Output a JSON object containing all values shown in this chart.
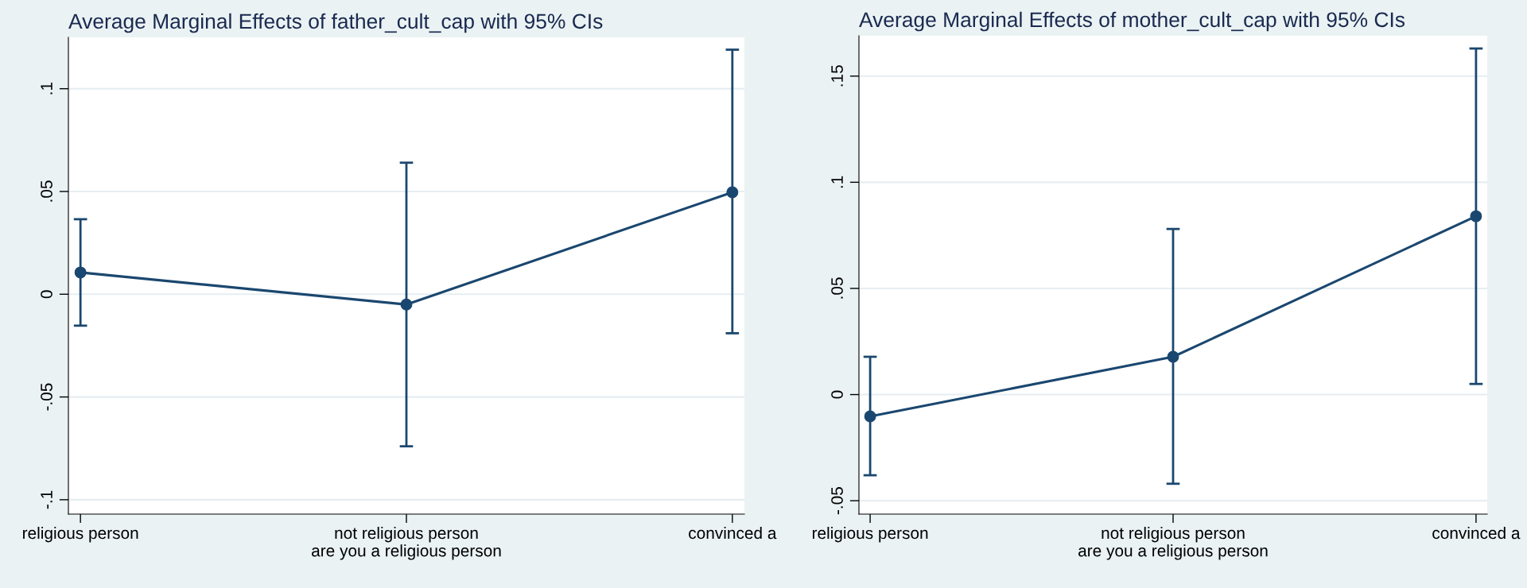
{
  "chart_data": [
    {
      "type": "line",
      "title": "Average Marginal Effects of father_cult_cap with 95% CIs",
      "xlabel": "are you a religious person",
      "categories": [
        "religious person",
        "not religious person",
        "convinced a"
      ],
      "series": [
        {
          "color": "#1a476f",
          "values": [
            0.0106,
            -0.005,
            0.0496
          ],
          "errors": [
            [
              -0.0153,
              0.0365
            ],
            [
              -0.074,
              0.064
            ],
            [
              -0.019,
              0.119
            ]
          ]
        }
      ],
      "ylim": [
        -0.107,
        0.125
      ],
      "yticks": [
        {
          "value": -0.1,
          "label": "-.1"
        },
        {
          "value": -0.05,
          "label": "-.05"
        },
        0,
        {
          "value": 0.05,
          "label": ".05"
        },
        {
          "value": 0.1,
          "label": ".1"
        }
      ],
      "grid": "y",
      "marker": "circle",
      "line_style": "solid"
    },
    {
      "type": "line",
      "title": "Average Marginal Effects of mother_cult_cap with 95% CIs",
      "xlabel": "are you a religious person",
      "categories": [
        "religious person",
        "not religious person",
        "convinced a"
      ],
      "series": [
        {
          "color": "#1a476f",
          "values": [
            -0.0103,
            0.0178,
            0.084
          ],
          "errors": [
            [
              -0.038,
              0.0178
            ],
            [
              -0.042,
              0.078
            ],
            [
              0.005,
              0.163
            ]
          ]
        }
      ],
      "ylim": [
        -0.0563,
        0.169
      ],
      "yticks": [
        {
          "value": -0.05,
          "label": "-.05"
        },
        0,
        {
          "value": 0.05,
          "label": ".05"
        },
        {
          "value": 0.1,
          "label": ".1"
        },
        {
          "value": 0.15,
          "label": ".15"
        }
      ],
      "grid": "y",
      "marker": "circle",
      "line_style": "solid"
    }
  ]
}
